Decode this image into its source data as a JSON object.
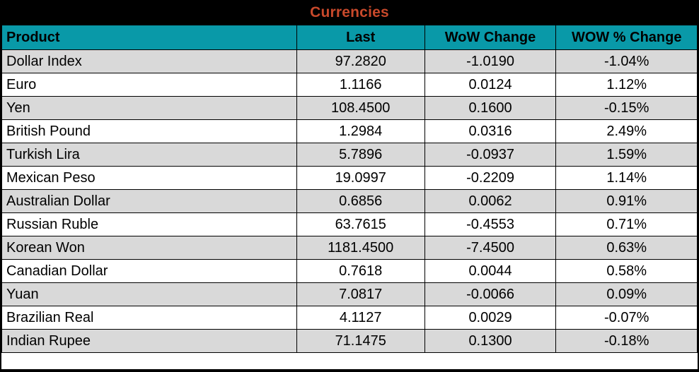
{
  "title_bar": {
    "title": "Currencies"
  },
  "colors": {
    "title_bg": "#000000",
    "title_text": "#C8492B",
    "header_bg": "#0999A8",
    "row_stripe": "#D9D9D9",
    "row_plain": "#FFFFFF",
    "border": "#000000"
  },
  "chart_data": {
    "type": "table",
    "title": "Currencies",
    "columns": [
      "Product",
      "Last",
      "WoW Change",
      "WOW % Change"
    ],
    "column_align": [
      "left",
      "center",
      "center",
      "center"
    ],
    "rows": [
      [
        "Dollar Index",
        "97.2820",
        "-1.0190",
        "-1.04%"
      ],
      [
        "Euro",
        "1.1166",
        "0.0124",
        "1.12%"
      ],
      [
        "Yen",
        "108.4500",
        "0.1600",
        "-0.15%"
      ],
      [
        "British Pound",
        "1.2984",
        "0.0316",
        "2.49%"
      ],
      [
        "Turkish Lira",
        "5.7896",
        "-0.0937",
        "1.59%"
      ],
      [
        "Mexican Peso",
        "19.0997",
        "-0.2209",
        "1.14%"
      ],
      [
        "Australian Dollar",
        "0.6856",
        "0.0062",
        "0.91%"
      ],
      [
        "Russian Ruble",
        "63.7615",
        "-0.4553",
        "0.71%"
      ],
      [
        "Korean Won",
        "1181.4500",
        "-7.4500",
        "0.63%"
      ],
      [
        "Canadian Dollar",
        "0.7618",
        "0.0044",
        "0.58%"
      ],
      [
        "Yuan",
        "7.0817",
        "-0.0066",
        "0.09%"
      ],
      [
        "Brazilian Real",
        "4.1127",
        "0.0029",
        "-0.07%"
      ],
      [
        "Indian Rupee",
        "71.1475",
        "0.1300",
        "-0.18%"
      ]
    ]
  }
}
